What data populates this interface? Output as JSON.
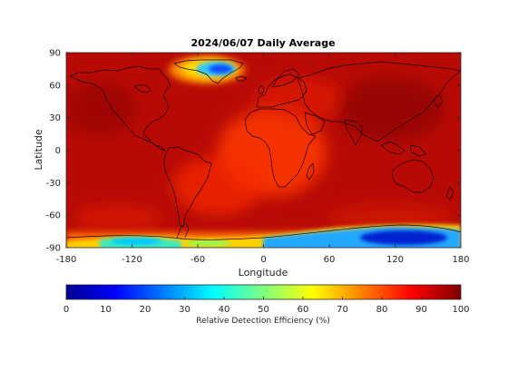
{
  "chart_data": {
    "type": "heatmap",
    "title": "2024/06/07 Daily Average",
    "xlabel": "Longitude",
    "ylabel": "Latitude",
    "xlim": [
      -180,
      180
    ],
    "ylim": [
      -90,
      90
    ],
    "xticks": [
      "-180",
      "-120",
      "-60",
      "0",
      "60",
      "120",
      "180"
    ],
    "yticks": [
      "90",
      "60",
      "30",
      "0",
      "-30",
      "-60",
      "-90"
    ],
    "colorbar": {
      "label": "Relative Detection Efficiency (%)",
      "range": [
        0,
        100
      ],
      "ticks": [
        "0",
        "10",
        "20",
        "30",
        "40",
        "50",
        "60",
        "70",
        "80",
        "90",
        "100"
      ],
      "colormap": "jet",
      "location": "bottom"
    },
    "field_regions": [
      {
        "region": "global background",
        "value": 95
      },
      {
        "region": "Africa and tropical Atlantic",
        "value": 80
      },
      {
        "region": "Greenland",
        "value": 30
      },
      {
        "region": "East Antarctica",
        "value": 15
      },
      {
        "region": "West Antarctica",
        "value": 40
      }
    ],
    "overlay": "coastlines"
  }
}
